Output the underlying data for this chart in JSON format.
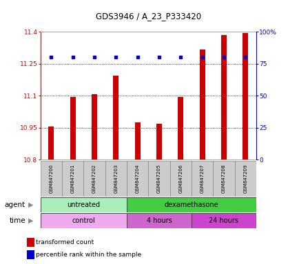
{
  "title": "GDS3946 / A_23_P333420",
  "samples": [
    "GSM847200",
    "GSM847201",
    "GSM847202",
    "GSM847203",
    "GSM847204",
    "GSM847205",
    "GSM847206",
    "GSM847207",
    "GSM847208",
    "GSM847209"
  ],
  "transformed_counts": [
    10.955,
    11.095,
    11.108,
    11.195,
    10.975,
    10.968,
    11.095,
    11.315,
    11.385,
    11.395
  ],
  "percentile_ranks": [
    80,
    80,
    80,
    80,
    80,
    80,
    80,
    80,
    80,
    80
  ],
  "ylim_left": [
    10.8,
    11.4
  ],
  "ylim_right": [
    0,
    100
  ],
  "yticks_left": [
    10.8,
    10.95,
    11.1,
    11.25,
    11.4
  ],
  "ytick_labels_left": [
    "10.8",
    "10.95",
    "11.1",
    "11.25",
    "11.4"
  ],
  "yticks_right": [
    0,
    25,
    50,
    75,
    100
  ],
  "ytick_labels_right": [
    "0",
    "25",
    "50",
    "75",
    "100%"
  ],
  "bar_color": "#cc0000",
  "dot_color": "#0000cc",
  "bar_bottom": 10.8,
  "bar_width": 0.25,
  "agent_groups": [
    {
      "label": "untreated",
      "start": 0,
      "end": 4,
      "color": "#aaeebb"
    },
    {
      "label": "dexamethasone",
      "start": 4,
      "end": 10,
      "color": "#44cc44"
    }
  ],
  "time_groups": [
    {
      "label": "control",
      "start": 0,
      "end": 4,
      "color": "#eeaaee"
    },
    {
      "label": "4 hours",
      "start": 4,
      "end": 7,
      "color": "#cc66cc"
    },
    {
      "label": "24 hours",
      "start": 7,
      "end": 10,
      "color": "#cc44cc"
    }
  ],
  "legend_items": [
    {
      "color": "#cc0000",
      "label": "transformed count"
    },
    {
      "color": "#0000cc",
      "label": "percentile rank within the sample"
    }
  ],
  "tick_area_color": "#cccccc",
  "spine_color": "#aaaaaa"
}
